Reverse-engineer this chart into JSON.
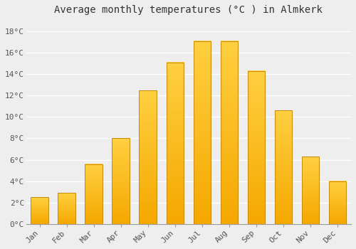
{
  "title": "Average monthly temperatures (°C ) in Almkerk",
  "months": [
    "Jan",
    "Feb",
    "Mar",
    "Apr",
    "May",
    "Jun",
    "Jul",
    "Aug",
    "Sep",
    "Oct",
    "Nov",
    "Dec"
  ],
  "values": [
    2.5,
    2.9,
    5.6,
    8.0,
    12.5,
    15.1,
    17.1,
    17.1,
    14.3,
    10.6,
    6.3,
    4.0
  ],
  "bar_color_light": "#FFD040",
  "bar_color_dark": "#F5A800",
  "bar_edge_color": "#C8880A",
  "ylim": [
    0,
    19
  ],
  "yticks": [
    0,
    2,
    4,
    6,
    8,
    10,
    12,
    14,
    16,
    18
  ],
  "ytick_labels": [
    "0°C",
    "2°C",
    "4°C",
    "6°C",
    "8°C",
    "10°C",
    "12°C",
    "14°C",
    "16°C",
    "18°C"
  ],
  "background_color": "#eeeeee",
  "grid_color": "#ffffff",
  "title_fontsize": 10,
  "tick_fontsize": 8,
  "font_family": "monospace",
  "bar_width": 0.65
}
